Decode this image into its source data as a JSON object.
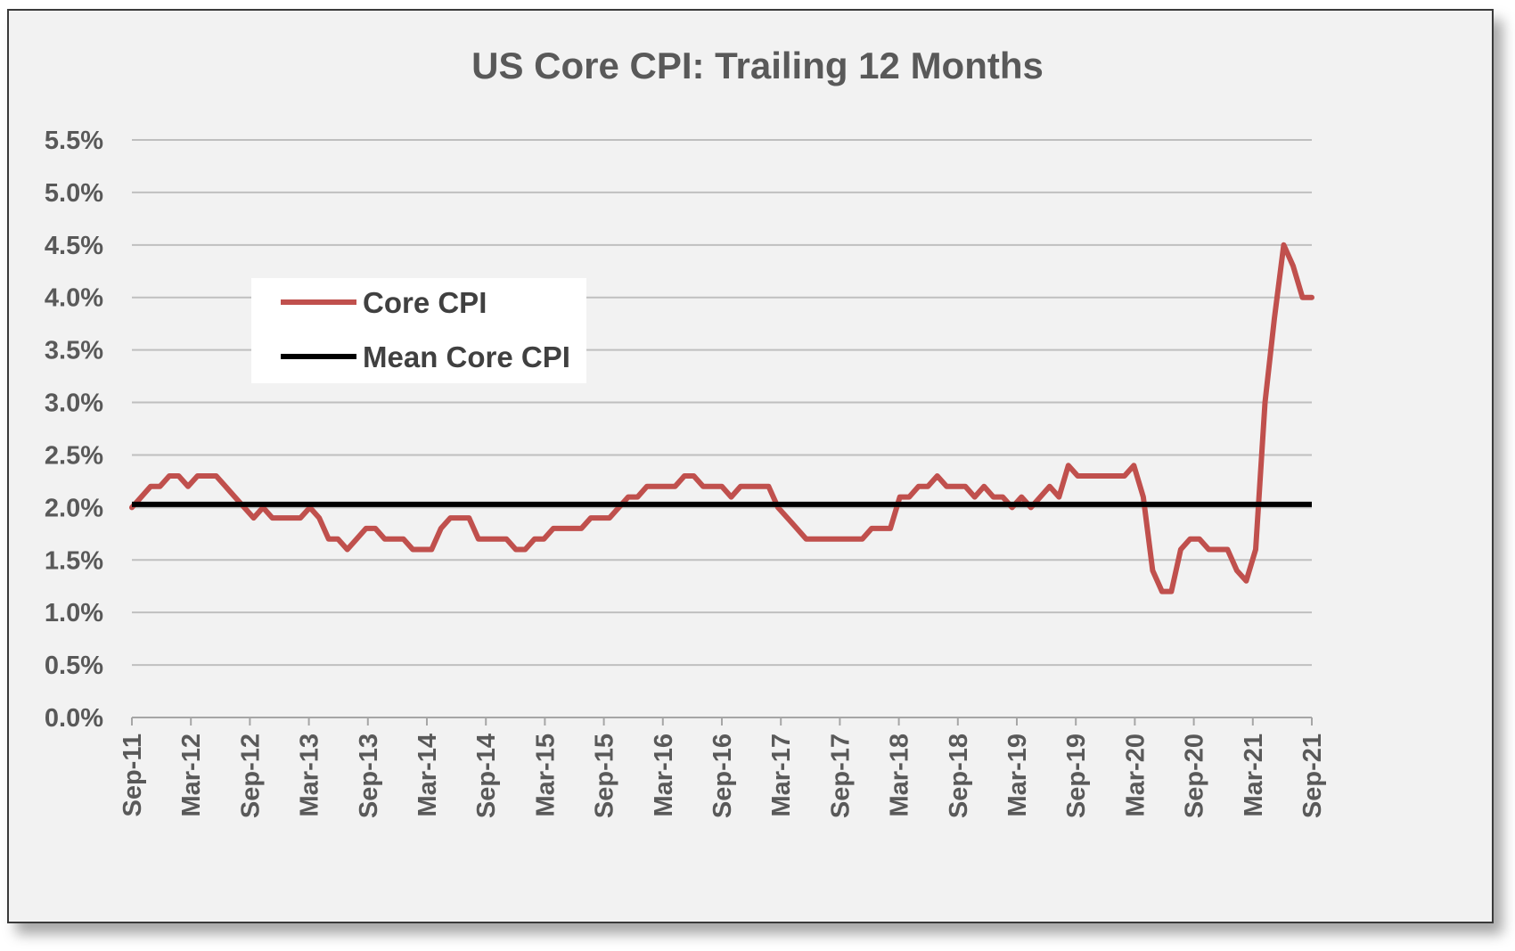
{
  "chart_data": {
    "type": "line",
    "title": "US Core CPI: Trailing 12 Months",
    "xlabel": "",
    "ylabel": "",
    "ylim": [
      0,
      5.5
    ],
    "y_ticks": [
      "0.0%",
      "0.5%",
      "1.0%",
      "1.5%",
      "2.0%",
      "2.5%",
      "3.0%",
      "3.5%",
      "4.0%",
      "4.5%",
      "5.0%",
      "5.5%"
    ],
    "x_ticks": [
      "Sep-11",
      "Mar-12",
      "Sep-12",
      "Mar-13",
      "Sep-13",
      "Mar-14",
      "Sep-14",
      "Mar-15",
      "Sep-15",
      "Mar-16",
      "Sep-16",
      "Mar-17",
      "Sep-17",
      "Mar-18",
      "Sep-18",
      "Mar-19",
      "Sep-19",
      "Mar-20",
      "Sep-20",
      "Mar-21",
      "Sep-21"
    ],
    "grid": true,
    "legend_position": "upper-left",
    "series": [
      {
        "name": "Core CPI",
        "color": "#c0504d",
        "start": "Sep-11",
        "frequency": "monthly",
        "values": [
          2.0,
          2.1,
          2.2,
          2.2,
          2.3,
          2.3,
          2.2,
          2.3,
          2.3,
          2.3,
          2.2,
          2.1,
          2.0,
          1.9,
          2.0,
          1.9,
          1.9,
          1.9,
          1.9,
          2.0,
          1.9,
          1.7,
          1.7,
          1.6,
          1.7,
          1.8,
          1.8,
          1.7,
          1.7,
          1.7,
          1.6,
          1.6,
          1.6,
          1.8,
          1.9,
          1.9,
          1.9,
          1.7,
          1.7,
          1.7,
          1.7,
          1.6,
          1.6,
          1.7,
          1.7,
          1.8,
          1.8,
          1.8,
          1.8,
          1.9,
          1.9,
          1.9,
          2.0,
          2.1,
          2.1,
          2.2,
          2.2,
          2.2,
          2.2,
          2.3,
          2.3,
          2.2,
          2.2,
          2.2,
          2.1,
          2.2,
          2.2,
          2.2,
          2.2,
          2.0,
          1.9,
          1.8,
          1.7,
          1.7,
          1.7,
          1.7,
          1.7,
          1.7,
          1.7,
          1.8,
          1.8,
          1.8,
          2.1,
          2.1,
          2.2,
          2.2,
          2.3,
          2.2,
          2.2,
          2.2,
          2.1,
          2.2,
          2.1,
          2.1,
          2.0,
          2.1,
          2.0,
          2.1,
          2.2,
          2.1,
          2.4,
          2.3,
          2.3,
          2.3,
          2.3,
          2.3,
          2.3,
          2.4,
          2.1,
          1.4,
          1.2,
          1.2,
          1.6,
          1.7,
          1.7,
          1.6,
          1.6,
          1.6,
          1.4,
          1.3,
          1.6,
          3.0,
          3.8,
          4.5,
          4.3,
          4.0,
          4.0
        ]
      },
      {
        "name": "Mean Core CPI",
        "color": "#000000",
        "constant": 2.03
      }
    ]
  }
}
